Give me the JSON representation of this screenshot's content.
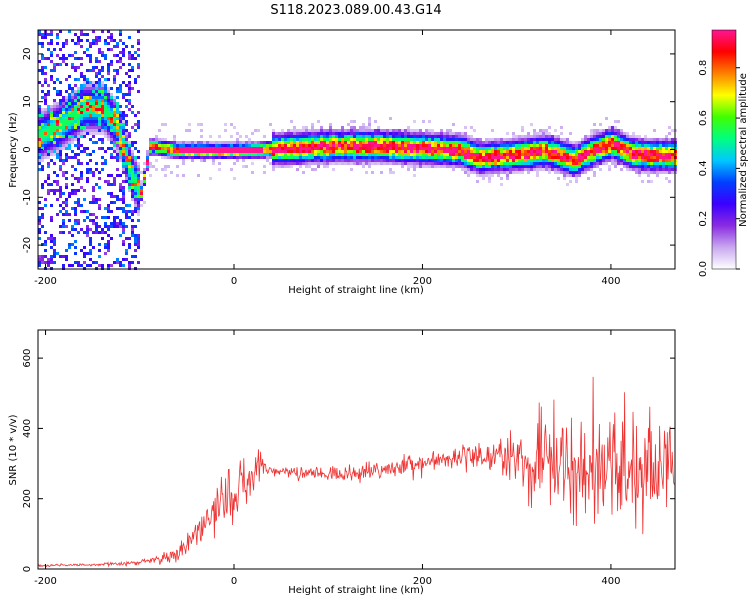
{
  "title": "S118.2023.089.00.43.G14",
  "colors": {
    "snr_line": "#ee3333",
    "spec_core": "#ff1111"
  },
  "chart_data": [
    {
      "type": "heatmap",
      "name": "spectrogram",
      "xlabel": "Height of straight line (km)",
      "ylabel": "Frequency (Hz)",
      "xlim": [
        -208,
        468
      ],
      "ylim": [
        -25,
        25
      ],
      "x_ticks": [
        "-200",
        "0",
        "200",
        "400"
      ],
      "y_ticks": [
        "-20",
        "-10",
        "0",
        "10",
        "20"
      ],
      "colorbar": {
        "label": "Normalized spectral amplitude",
        "range": [
          0,
          0.95
        ],
        "ticks": [
          "0.0",
          "0.2",
          "0.4",
          "0.6",
          "0.8"
        ],
        "colormap": [
          "#ffffff",
          "#c8a8f0",
          "#8a2be2",
          "#3a00ff",
          "#0040ff",
          "#00c8ff",
          "#00ff80",
          "#40ff00",
          "#ffff00",
          "#ff8000",
          "#ff0000",
          "#ff1493"
        ]
      },
      "frequency_track": {
        "x": [
          -208,
          -180,
          -160,
          -140,
          -125,
          -110,
          -100,
          -90,
          -60,
          0,
          60,
          100,
          150,
          200,
          240,
          260,
          300,
          330,
          360,
          380,
          400,
          420,
          440,
          468
        ],
        "y": [
          3,
          6,
          9,
          9,
          5,
          -5,
          -9,
          1,
          0,
          0,
          0.5,
          1,
          1,
          0.5,
          0,
          -1.5,
          -0.8,
          0,
          -2,
          0,
          1.5,
          -0.5,
          -1,
          -1
        ]
      },
      "grid": false
    },
    {
      "type": "line",
      "name": "snr",
      "xlabel": "Height of straight line (km)",
      "ylabel": "SNR (10 * v/v)",
      "xlim": [
        -208,
        468
      ],
      "ylim": [
        0,
        680
      ],
      "x_ticks": [
        "-200",
        "0",
        "200",
        "400"
      ],
      "y_ticks": [
        "0",
        "200",
        "400",
        "600"
      ],
      "envelope": {
        "x": [
          -208,
          -150,
          -100,
          -60,
          -40,
          -20,
          0,
          20,
          30,
          40,
          100,
          150,
          200,
          250,
          300,
          320,
          350,
          380,
          400,
          430,
          468
        ],
        "mean": [
          10,
          12,
          18,
          40,
          100,
          150,
          230,
          270,
          300,
          280,
          270,
          280,
          300,
          320,
          320,
          300,
          300,
          300,
          300,
          290,
          280
        ],
        "spread": [
          3,
          4,
          8,
          20,
          50,
          80,
          90,
          60,
          40,
          15,
          20,
          25,
          30,
          40,
          60,
          140,
          170,
          180,
          160,
          150,
          140
        ]
      },
      "grid": false
    }
  ]
}
